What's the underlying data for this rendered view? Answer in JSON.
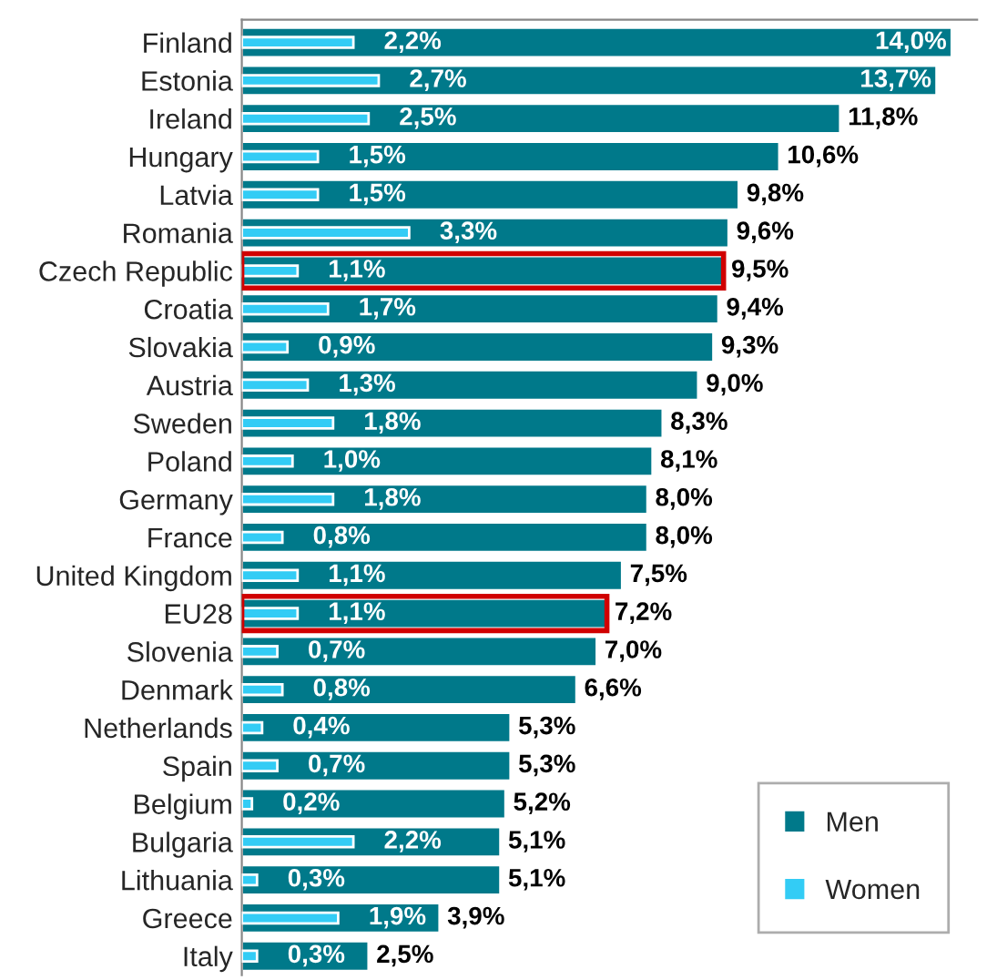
{
  "chart_data": {
    "type": "bar",
    "orientation": "horizontal",
    "categories": [
      "Finland",
      "Estonia",
      "Ireland",
      "Hungary",
      "Latvia",
      "Romania",
      "Czech Republic",
      "Croatia",
      "Slovakia",
      "Austria",
      "Sweden",
      "Poland",
      "Germany",
      "France",
      "United Kingdom",
      "EU28",
      "Slovenia",
      "Denmark",
      "Netherlands",
      "Spain",
      "Belgium",
      "Bulgaria",
      "Lithuania",
      "Greece",
      "Italy"
    ],
    "series": [
      {
        "name": "Men",
        "color": "#00798a",
        "values": [
          14.0,
          13.7,
          11.8,
          10.6,
          9.8,
          9.6,
          9.5,
          9.4,
          9.3,
          9.0,
          8.3,
          8.1,
          8.0,
          8.0,
          7.5,
          7.2,
          7.0,
          6.6,
          5.3,
          5.3,
          5.2,
          5.1,
          5.1,
          3.9,
          2.5
        ],
        "value_labels": [
          "14,0%",
          "13,7%",
          "11,8%",
          "10,6%",
          "9,8%",
          "9,6%",
          "9,5%",
          "9,4%",
          "9,3%",
          "9,0%",
          "8,3%",
          "8,1%",
          "8,0%",
          "8,0%",
          "7,5%",
          "7,2%",
          "7,0%",
          "6,6%",
          "5,3%",
          "5,3%",
          "5,2%",
          "5,1%",
          "5,1%",
          "3,9%",
          "2,5%"
        ]
      },
      {
        "name": "Women",
        "color": "#33ccf5",
        "values": [
          2.2,
          2.7,
          2.5,
          1.5,
          1.5,
          3.3,
          1.1,
          1.7,
          0.9,
          1.3,
          1.8,
          1.0,
          1.8,
          0.8,
          1.1,
          1.1,
          0.7,
          0.8,
          0.4,
          0.7,
          0.2,
          2.2,
          0.3,
          1.9,
          0.3
        ],
        "value_labels": [
          "2,2%",
          "2,7%",
          "2,5%",
          "1,5%",
          "1,5%",
          "3,3%",
          "1,1%",
          "1,7%",
          "0,9%",
          "1,3%",
          "1,8%",
          "1,0%",
          "1,8%",
          "0,8%",
          "1,1%",
          "1,1%",
          "0,7%",
          "0,8%",
          "0,4%",
          "0,7%",
          "0,2%",
          "2,2%",
          "0,3%",
          "1,9%",
          "0,3%"
        ]
      },
      {
        "color": "#d00000",
        "values": [
          null,
          null,
          null,
          null,
          null,
          null,
          9.5,
          null,
          null,
          null,
          null,
          null,
          null,
          null,
          null,
          7.2,
          null,
          null,
          null,
          null,
          null,
          null,
          null,
          null,
          null
        ]
      }
    ],
    "xlim": [
      0,
      14.5
    ],
    "tick_labels": "y",
    "grid": false,
    "legend": "bottom right"
  }
}
